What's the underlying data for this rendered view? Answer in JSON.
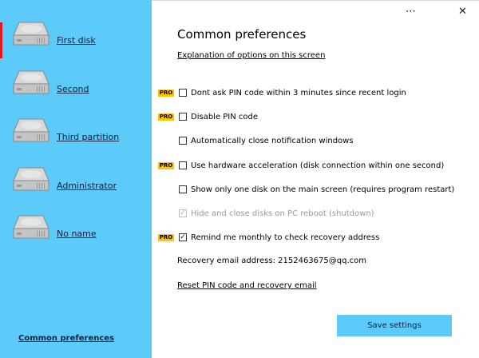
{
  "sidebar": {
    "disks": [
      {
        "label": "First disk",
        "active": true
      },
      {
        "label": "Second"
      },
      {
        "label": "Third partition"
      },
      {
        "label": "Administrator"
      },
      {
        "label": "No name"
      }
    ],
    "common_label": "Common preferences"
  },
  "window": {
    "more_icon": "⋯",
    "close_icon": "✕"
  },
  "main": {
    "title": "Common preferences",
    "explain_link": "Explanation of options on this screen",
    "pro_badge": "PRO",
    "options": [
      {
        "label": "Dont ask PIN code within 3 minutes since recent login",
        "pro": true,
        "checked": false
      },
      {
        "label": "Disable PIN code",
        "pro": true,
        "checked": false
      },
      {
        "label": "Automatically close notification windows",
        "pro": false,
        "checked": false
      },
      {
        "label": "Use hardware acceleration (disk connection within one second)",
        "pro": true,
        "checked": false
      },
      {
        "label": "Show only one disk on the main screen (requires program restart)",
        "pro": false,
        "checked": false
      },
      {
        "label": "Hide and close disks on PC reboot (shutdown)",
        "pro": false,
        "checked": true,
        "disabled": true
      },
      {
        "label": "Remind me monthly to check recovery address",
        "pro": true,
        "checked": true
      }
    ],
    "email_text": "Recovery email address: 2152463675@qq.com",
    "reset_link": "Reset PIN code and recovery email",
    "save_label": "Save settings"
  },
  "colors": {
    "sidebar": "#5dcbfa",
    "pro": "#ffc400",
    "active_marker": "#e8141c"
  }
}
